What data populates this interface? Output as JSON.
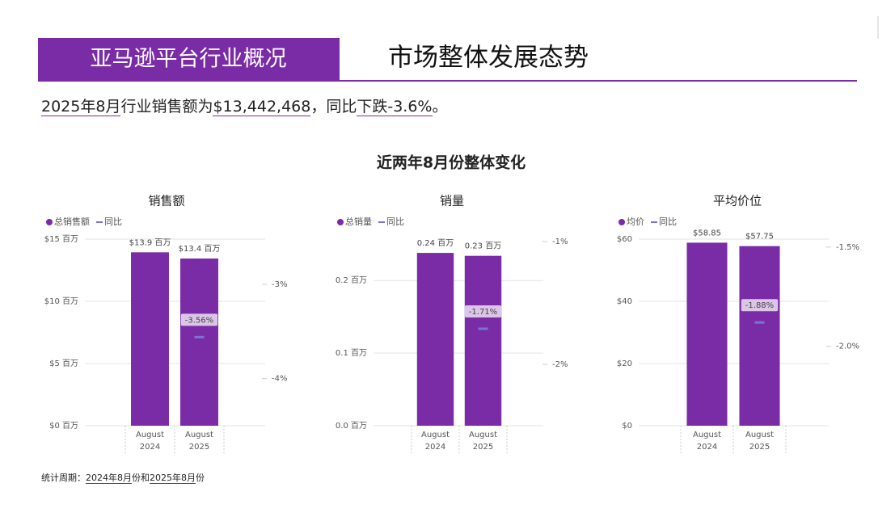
{
  "header": {
    "tag": "亚马逊平台行业概况",
    "title": "市场整体发展态势"
  },
  "summary": [
    {
      "text": "2025年8月",
      "underline": true
    },
    {
      "text": "行业销售额为",
      "underline": false
    },
    {
      "text": "$13,442,468",
      "underline": true
    },
    {
      "text": "，同比",
      "underline": false
    },
    {
      "text": "下跌-3.6%",
      "underline": true
    },
    {
      "text": "。",
      "underline": false
    }
  ],
  "section_title": "近两年8月份整体变化",
  "footer": [
    {
      "text": "统计周期：",
      "underline": false
    },
    {
      "text": "2024年8月",
      "underline": true
    },
    {
      "text": "份和",
      "underline": false
    },
    {
      "text": "2025年8月",
      "underline": true
    },
    {
      "text": "份",
      "underline": false
    }
  ],
  "chart_data": [
    {
      "type": "combo",
      "title": "销售额",
      "categories": [
        "August 2024",
        "August 2025"
      ],
      "series": [
        {
          "name": "总销售额",
          "kind": "bar",
          "color": "#7a2ca6",
          "values": [
            13.94,
            13.44
          ],
          "value_labels": [
            "$13.9 百万",
            "$13.4 百万"
          ]
        },
        {
          "name": "同比",
          "kind": "line",
          "axis": "y2",
          "color": "#7b72d8",
          "values": [
            null,
            -3.56
          ],
          "value_labels": [
            null,
            "-3.56%"
          ]
        }
      ],
      "ylim": [
        0,
        15
      ],
      "yticks": [
        {
          "value": 0,
          "label": "$0 百万"
        },
        {
          "value": 5,
          "label": "$5 百万"
        },
        {
          "value": 10,
          "label": "$10 百万"
        },
        {
          "value": 15,
          "label": "$15 百万"
        }
      ],
      "y2lim": [
        -4.5,
        -2.52
      ],
      "y2ticks": [
        {
          "value": -4,
          "label": "-4%"
        },
        {
          "value": -3,
          "label": "-3%"
        }
      ],
      "grid": true
    },
    {
      "type": "combo",
      "title": "销量",
      "categories": [
        "August 2024",
        "August 2025"
      ],
      "series": [
        {
          "name": "总销量",
          "kind": "bar",
          "color": "#7a2ca6",
          "values": [
            0.238,
            0.234
          ],
          "value_labels": [
            "0.24 百万",
            "0.23 百万"
          ]
        },
        {
          "name": "同比",
          "kind": "line",
          "axis": "y2",
          "color": "#7b72d8",
          "values": [
            null,
            -1.71
          ],
          "value_labels": [
            null,
            "-1.71%"
          ]
        }
      ],
      "ylim": [
        0,
        0.257
      ],
      "yticks": [
        {
          "value": 0,
          "label": "0.0 百万"
        },
        {
          "value": 0.1,
          "label": "0.1 百万"
        },
        {
          "value": 0.2,
          "label": "0.2 百万"
        }
      ],
      "y2lim": [
        -2.5,
        -0.98
      ],
      "y2ticks": [
        {
          "value": -2,
          "label": "-2%"
        },
        {
          "value": -1,
          "label": "-1%"
        }
      ],
      "grid": true
    },
    {
      "type": "combo",
      "title": "平均价位",
      "categories": [
        "August 2024",
        "August 2025"
      ],
      "series": [
        {
          "name": "均价",
          "kind": "bar",
          "color": "#7a2ca6",
          "values": [
            58.85,
            57.75
          ],
          "value_labels": [
            "$58.85",
            "$57.75"
          ]
        },
        {
          "name": "同比",
          "kind": "line",
          "axis": "y2",
          "color": "#7b72d8",
          "values": [
            null,
            -1.88
          ],
          "value_labels": [
            null,
            "-1.88%"
          ]
        }
      ],
      "ylim": [
        0,
        60
      ],
      "yticks": [
        {
          "value": 0,
          "label": "$0"
        },
        {
          "value": 20,
          "label": "$20"
        },
        {
          "value": 40,
          "label": "$40"
        },
        {
          "value": 60,
          "label": "$60"
        }
      ],
      "y2lim": [
        -2.4,
        -1.46
      ],
      "y2ticks": [
        {
          "value": -2.0,
          "label": "-2.0%"
        },
        {
          "value": -1.5,
          "label": "-1.5%"
        }
      ],
      "grid": true
    }
  ]
}
